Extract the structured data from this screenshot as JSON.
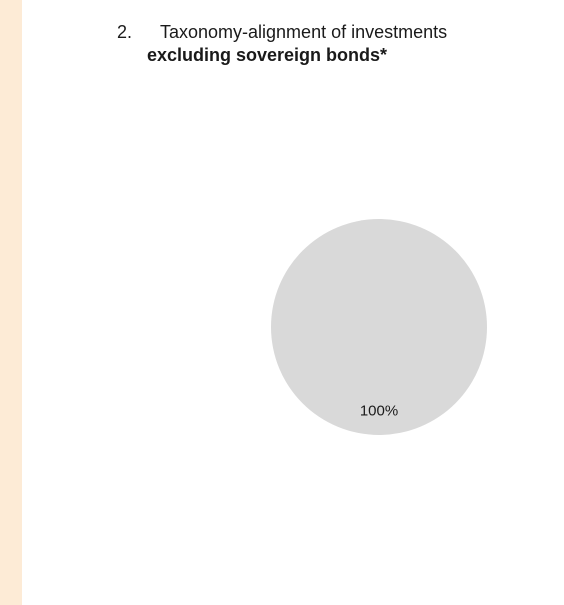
{
  "header": {
    "number": "2.",
    "title_line1": "Taxonomy-alignment of investments",
    "title_line2": "excluding sovereign bonds*"
  },
  "chart_data": {
    "type": "pie",
    "title": "Taxonomy-alignment of investments excluding sovereign bonds*",
    "slices": [
      {
        "label": "",
        "value": 100,
        "display": "100%",
        "color": "#d9d9d9"
      }
    ]
  }
}
